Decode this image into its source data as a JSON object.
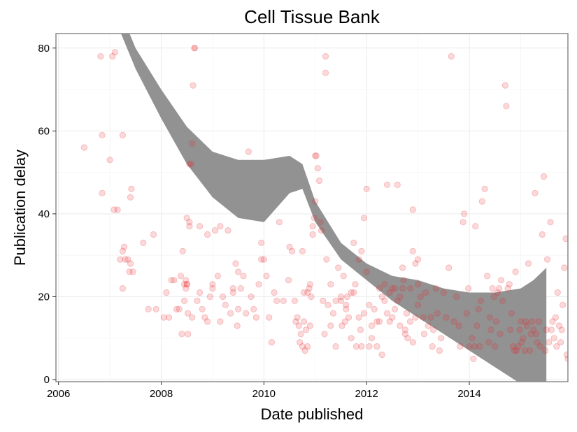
{
  "chart_data": {
    "type": "scatter",
    "title": "Cell Tissue Bank",
    "xlabel": "Date published",
    "ylabel": "Publication delay",
    "xlim": [
      2005.95,
      2015.92
    ],
    "ylim": [
      -0.5,
      83.5
    ],
    "x_ticks": [
      2006,
      2008,
      2010,
      2012,
      2014
    ],
    "y_ticks": [
      0,
      20,
      40,
      60,
      80
    ],
    "grid": true,
    "legend": "none",
    "colors": {
      "points": "#e8262a",
      "band": "#8c8c8c",
      "panel_border": "#8a8a8a",
      "grid": "#ebebeb"
    },
    "points": [
      [
        2006.5,
        56
      ],
      [
        2006.82,
        78
      ],
      [
        2006.85,
        59
      ],
      [
        2006.85,
        45
      ],
      [
        2007.0,
        53
      ],
      [
        2007.08,
        41
      ],
      [
        2007.1,
        79
      ],
      [
        2007.05,
        78
      ],
      [
        2007.15,
        41
      ],
      [
        2007.2,
        29
      ],
      [
        2007.25,
        59
      ],
      [
        2007.25,
        31
      ],
      [
        2007.28,
        32
      ],
      [
        2007.3,
        29
      ],
      [
        2007.35,
        29
      ],
      [
        2007.25,
        22
      ],
      [
        2007.4,
        44
      ],
      [
        2007.42,
        46
      ],
      [
        2007.4,
        28
      ],
      [
        2007.38,
        26
      ],
      [
        2007.45,
        26
      ],
      [
        2007.65,
        33
      ],
      [
        2007.75,
        17
      ],
      [
        2007.85,
        35
      ],
      [
        2007.9,
        17
      ],
      [
        2008.05,
        15
      ],
      [
        2008.1,
        21
      ],
      [
        2008.15,
        15
      ],
      [
        2008.2,
        24
      ],
      [
        2008.25,
        24
      ],
      [
        2008.3,
        17
      ],
      [
        2008.35,
        17
      ],
      [
        2008.38,
        25
      ],
      [
        2008.4,
        11
      ],
      [
        2008.42,
        31
      ],
      [
        2008.45,
        19
      ],
      [
        2008.45,
        23
      ],
      [
        2008.48,
        22
      ],
      [
        2008.48,
        24
      ],
      [
        2008.5,
        23
      ],
      [
        2008.5,
        39
      ],
      [
        2008.5,
        23
      ],
      [
        2008.52,
        11
      ],
      [
        2008.52,
        16
      ],
      [
        2008.55,
        37
      ],
      [
        2008.55,
        38
      ],
      [
        2008.55,
        52
      ],
      [
        2008.58,
        52
      ],
      [
        2008.6,
        57
      ],
      [
        2008.6,
        15
      ],
      [
        2008.62,
        71
      ],
      [
        2008.65,
        80
      ],
      [
        2008.65,
        80
      ],
      [
        2008.7,
        19
      ],
      [
        2008.75,
        37
      ],
      [
        2008.75,
        21
      ],
      [
        2008.8,
        17
      ],
      [
        2008.85,
        15
      ],
      [
        2008.9,
        14
      ],
      [
        2008.9,
        35
      ],
      [
        2008.95,
        20
      ],
      [
        2009.0,
        22
      ],
      [
        2009.0,
        23
      ],
      [
        2009.05,
        36
      ],
      [
        2009.1,
        25
      ],
      [
        2009.15,
        14
      ],
      [
        2009.15,
        37
      ],
      [
        2009.2,
        20
      ],
      [
        2009.25,
        18
      ],
      [
        2009.3,
        36
      ],
      [
        2009.35,
        16
      ],
      [
        2009.4,
        21
      ],
      [
        2009.4,
        22
      ],
      [
        2009.45,
        28
      ],
      [
        2009.48,
        13
      ],
      [
        2009.5,
        26
      ],
      [
        2009.5,
        17
      ],
      [
        2009.55,
        22
      ],
      [
        2009.6,
        25
      ],
      [
        2009.65,
        16
      ],
      [
        2009.7,
        55
      ],
      [
        2009.75,
        20
      ],
      [
        2009.8,
        17
      ],
      [
        2009.85,
        15
      ],
      [
        2009.9,
        23
      ],
      [
        2009.95,
        29
      ],
      [
        2009.95,
        33
      ],
      [
        2010.0,
        29
      ],
      [
        2010.05,
        25
      ],
      [
        2010.1,
        15
      ],
      [
        2010.15,
        9
      ],
      [
        2010.2,
        21
      ],
      [
        2010.25,
        19
      ],
      [
        2010.3,
        38
      ],
      [
        2010.38,
        19
      ],
      [
        2010.48,
        24
      ],
      [
        2010.5,
        32
      ],
      [
        2010.55,
        31
      ],
      [
        2010.6,
        19
      ],
      [
        2010.62,
        14
      ],
      [
        2010.65,
        15
      ],
      [
        2010.68,
        13
      ],
      [
        2010.7,
        9
      ],
      [
        2010.72,
        11
      ],
      [
        2010.75,
        8
      ],
      [
        2010.75,
        31
      ],
      [
        2010.78,
        14
      ],
      [
        2010.78,
        21
      ],
      [
        2010.8,
        7
      ],
      [
        2010.82,
        12
      ],
      [
        2010.85,
        21
      ],
      [
        2010.85,
        8
      ],
      [
        2010.88,
        22
      ],
      [
        2010.9,
        13
      ],
      [
        2010.9,
        23
      ],
      [
        2010.92,
        20
      ],
      [
        2010.95,
        37
      ],
      [
        2010.95,
        35
      ],
      [
        2010.98,
        39
      ],
      [
        2011.0,
        43
      ],
      [
        2011.0,
        54
      ],
      [
        2011.02,
        54
      ],
      [
        2011.05,
        51
      ],
      [
        2011.08,
        48
      ],
      [
        2011.1,
        38
      ],
      [
        2011.12,
        36
      ],
      [
        2011.15,
        19
      ],
      [
        2011.18,
        11
      ],
      [
        2011.2,
        74
      ],
      [
        2011.22,
        29
      ],
      [
        2011.25,
        18
      ],
      [
        2011.3,
        13
      ],
      [
        2011.35,
        16
      ],
      [
        2011.4,
        19
      ],
      [
        2011.45,
        27
      ],
      [
        2011.5,
        19
      ],
      [
        2011.52,
        13
      ],
      [
        2011.55,
        25
      ],
      [
        2011.58,
        14
      ],
      [
        2011.6,
        18
      ],
      [
        2011.62,
        20
      ],
      [
        2011.65,
        15
      ],
      [
        2011.7,
        21
      ],
      [
        2011.75,
        21
      ],
      [
        2011.78,
        23
      ],
      [
        2011.8,
        8
      ],
      [
        2011.85,
        15
      ],
      [
        2011.88,
        12
      ],
      [
        2011.9,
        8
      ],
      [
        2011.95,
        39
      ],
      [
        2011.95,
        16
      ],
      [
        2012.0,
        46
      ],
      [
        2012.05,
        8
      ],
      [
        2012.1,
        10
      ],
      [
        2012.15,
        17
      ],
      [
        2012.2,
        8
      ],
      [
        2012.25,
        14
      ],
      [
        2012.3,
        6
      ],
      [
        2012.35,
        19
      ],
      [
        2012.4,
        47
      ],
      [
        2012.45,
        14
      ],
      [
        2012.5,
        22
      ],
      [
        2012.5,
        15
      ],
      [
        2012.55,
        22
      ],
      [
        2012.6,
        47
      ],
      [
        2012.65,
        20
      ],
      [
        2012.7,
        22
      ],
      [
        2012.75,
        11
      ],
      [
        2012.75,
        12
      ],
      [
        2012.8,
        10
      ],
      [
        2012.85,
        22
      ],
      [
        2012.9,
        41
      ],
      [
        2012.9,
        31
      ],
      [
        2012.95,
        28
      ],
      [
        2012.95,
        15
      ],
      [
        2013.0,
        29
      ],
      [
        2013.0,
        23
      ],
      [
        2011.2,
        78
      ],
      [
        2011.3,
        23
      ],
      [
        2011.4,
        8
      ],
      [
        2011.5,
        20
      ],
      [
        2011.6,
        17
      ],
      [
        2011.7,
        10
      ],
      [
        2011.75,
        33
      ],
      [
        2011.85,
        29
      ],
      [
        2011.9,
        31
      ],
      [
        2012.0,
        26
      ],
      [
        2012.05,
        18
      ],
      [
        2012.1,
        13
      ],
      [
        2012.2,
        14
      ],
      [
        2012.25,
        22
      ],
      [
        2012.3,
        20
      ],
      [
        2012.35,
        23
      ],
      [
        2012.4,
        16
      ],
      [
        2012.45,
        21
      ],
      [
        2012.55,
        17
      ],
      [
        2012.6,
        19
      ],
      [
        2012.65,
        13
      ],
      [
        2012.7,
        27
      ],
      [
        2012.72,
        24
      ],
      [
        2012.78,
        16
      ],
      [
        2012.85,
        14
      ],
      [
        2012.9,
        9
      ],
      [
        2013.0,
        18
      ],
      [
        2013.05,
        20
      ],
      [
        2013.1,
        15
      ],
      [
        2013.12,
        11
      ],
      [
        2013.15,
        21
      ],
      [
        2013.2,
        13
      ],
      [
        2013.25,
        15
      ],
      [
        2013.28,
        8
      ],
      [
        2013.3,
        12
      ],
      [
        2013.35,
        22
      ],
      [
        2013.38,
        16
      ],
      [
        2013.42,
        7
      ],
      [
        2013.45,
        10
      ],
      [
        2013.5,
        21
      ],
      [
        2013.55,
        15
      ],
      [
        2013.6,
        27
      ],
      [
        2013.65,
        78
      ],
      [
        2013.7,
        14
      ],
      [
        2013.75,
        20
      ],
      [
        2013.8,
        13
      ],
      [
        2013.82,
        8
      ],
      [
        2013.88,
        38
      ],
      [
        2013.9,
        40
      ],
      [
        2013.95,
        16
      ],
      [
        2013.98,
        22
      ],
      [
        2014.0,
        8
      ],
      [
        2014.05,
        10
      ],
      [
        2014.08,
        5
      ],
      [
        2014.1,
        8
      ],
      [
        2014.12,
        37
      ],
      [
        2014.15,
        13
      ],
      [
        2014.18,
        17
      ],
      [
        2014.2,
        8
      ],
      [
        2014.22,
        19
      ],
      [
        2014.25,
        43
      ],
      [
        2014.3,
        46
      ],
      [
        2014.35,
        25
      ],
      [
        2014.38,
        9
      ],
      [
        2014.4,
        15
      ],
      [
        2014.42,
        12
      ],
      [
        2014.45,
        22
      ],
      [
        2014.48,
        20
      ],
      [
        2014.5,
        8
      ],
      [
        2014.52,
        14
      ],
      [
        2014.55,
        21
      ],
      [
        2014.58,
        22
      ],
      [
        2014.6,
        11
      ],
      [
        2014.62,
        24
      ],
      [
        2014.65,
        19
      ],
      [
        2014.7,
        71
      ],
      [
        2014.72,
        66
      ],
      [
        2014.75,
        22
      ],
      [
        2014.78,
        23
      ],
      [
        2014.8,
        12
      ],
      [
        2014.82,
        16
      ],
      [
        2014.85,
        8
      ],
      [
        2014.88,
        7
      ],
      [
        2014.9,
        26
      ],
      [
        2014.92,
        7
      ],
      [
        2014.95,
        8
      ],
      [
        2014.98,
        12
      ],
      [
        2015.0,
        14
      ],
      [
        2015.02,
        9
      ],
      [
        2015.05,
        10
      ],
      [
        2015.08,
        7
      ],
      [
        2015.1,
        14
      ],
      [
        2015.12,
        13
      ],
      [
        2015.15,
        28
      ],
      [
        2015.18,
        7
      ],
      [
        2015.2,
        11
      ],
      [
        2015.22,
        14
      ],
      [
        2015.25,
        12
      ],
      [
        2015.28,
        45
      ],
      [
        2015.3,
        11
      ],
      [
        2015.32,
        9
      ],
      [
        2015.35,
        14
      ],
      [
        2015.38,
        8
      ],
      [
        2015.42,
        35
      ],
      [
        2015.45,
        49
      ],
      [
        2015.48,
        7
      ],
      [
        2015.5,
        12
      ],
      [
        2015.52,
        29
      ],
      [
        2015.55,
        9
      ],
      [
        2015.58,
        38
      ],
      [
        2015.6,
        12
      ],
      [
        2015.62,
        14
      ],
      [
        2015.65,
        10
      ],
      [
        2015.68,
        15
      ],
      [
        2015.7,
        8
      ],
      [
        2015.72,
        21
      ],
      [
        2015.75,
        13
      ],
      [
        2015.78,
        9
      ],
      [
        2015.8,
        12
      ],
      [
        2015.82,
        18
      ],
      [
        2015.85,
        27
      ],
      [
        2015.88,
        34
      ],
      [
        2015.9,
        6
      ],
      [
        2015.92,
        5
      ]
    ],
    "smooth_band": {
      "x": [
        2006.75,
        2007.0,
        2007.5,
        2008.0,
        2008.5,
        2009.0,
        2009.5,
        2010.0,
        2010.5,
        2010.75,
        2011.0,
        2011.5,
        2012.0,
        2012.5,
        2013.0,
        2013.5,
        2014.0,
        2014.5,
        2015.0,
        2015.25,
        2015.5
      ],
      "lower": [
        98,
        90,
        75,
        63,
        52,
        44,
        39,
        38,
        45,
        46,
        38,
        29,
        24,
        19,
        15,
        11,
        7,
        3,
        -1,
        -4,
        -6
      ],
      "upper": [
        103,
        95,
        80,
        70,
        61,
        55,
        53,
        53,
        54,
        52,
        43,
        33,
        28,
        25,
        24,
        22,
        21,
        21,
        22,
        24,
        27
      ]
    }
  }
}
